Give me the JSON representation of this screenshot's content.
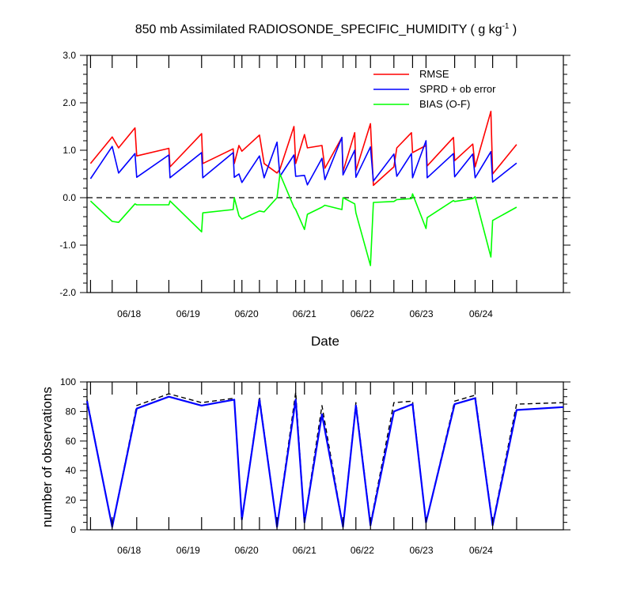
{
  "colors": {
    "rmse": "#ff0000",
    "sprd": "#0000ff",
    "bias": "#00ff00",
    "nobs_total": "#000000",
    "nobs_used": "#0000ff",
    "zero_line": "#000000"
  },
  "chart_data": [
    {
      "type": "line",
      "title": "850 mb Assimilated RADIOSONDE_SPECIFIC_HUMIDITY ( g kg",
      "title_sup": "-1",
      "title_end": " )",
      "xlabel": "Date",
      "ylabel": "",
      "xlim": [
        0,
        8.15
      ],
      "ylim": [
        -2.0,
        3.0
      ],
      "yticks": [
        "3.0",
        "2.0",
        "1.0",
        "0.0",
        "-1.0",
        "-2.0"
      ],
      "ytick_values": [
        3.0,
        2.0,
        1.0,
        0.0,
        -1.0,
        -2.0
      ],
      "xticks": [
        "06/18",
        "06/19",
        "06/20",
        "06/21",
        "06/22",
        "06/23",
        "06/24"
      ],
      "xtick_values": [
        0.72,
        1.73,
        2.73,
        3.72,
        4.71,
        5.72,
        6.74
      ],
      "zero_line": true,
      "legend_position": "top-right",
      "series": [
        {
          "name": "RMSE",
          "x": [
            0.06,
            0.43,
            0.54,
            0.82,
            0.85,
            1.4,
            1.42,
            1.96,
            1.98,
            2.5,
            2.52,
            2.6,
            2.65,
            2.95,
            3.03,
            3.25,
            3.3,
            3.54,
            3.57,
            3.72,
            3.77,
            4.02,
            4.07,
            4.36,
            4.38,
            4.58,
            4.6,
            4.85,
            4.9,
            5.25,
            5.3,
            5.55,
            5.57,
            5.8,
            5.82,
            6.27,
            6.29,
            6.6,
            6.64,
            6.91,
            6.94,
            7.35
          ],
          "y": [
            0.72,
            1.28,
            1.05,
            1.47,
            0.88,
            1.04,
            0.65,
            1.35,
            0.72,
            1.03,
            0.72,
            1.1,
            0.98,
            1.32,
            0.72,
            0.52,
            0.6,
            1.5,
            0.72,
            1.33,
            1.05,
            1.1,
            0.62,
            1.27,
            0.55,
            1.37,
            0.57,
            1.56,
            0.26,
            0.65,
            1.05,
            1.37,
            0.95,
            1.1,
            0.67,
            1.27,
            0.78,
            1.13,
            0.65,
            1.82,
            0.5,
            1.12
          ]
        },
        {
          "name": "SPRD + ob error",
          "x": [
            0.06,
            0.43,
            0.54,
            0.82,
            0.85,
            1.4,
            1.42,
            1.96,
            1.98,
            2.5,
            2.52,
            2.6,
            2.65,
            2.95,
            3.03,
            3.25,
            3.3,
            3.54,
            3.57,
            3.72,
            3.77,
            4.02,
            4.07,
            4.36,
            4.38,
            4.58,
            4.6,
            4.85,
            4.9,
            5.25,
            5.3,
            5.55,
            5.57,
            5.8,
            5.82,
            6.27,
            6.29,
            6.6,
            6.64,
            6.91,
            6.94,
            7.35
          ],
          "y": [
            0.4,
            1.08,
            0.52,
            0.93,
            0.43,
            0.9,
            0.42,
            0.95,
            0.42,
            0.95,
            0.43,
            0.5,
            0.32,
            0.88,
            0.42,
            1.17,
            0.45,
            0.9,
            0.45,
            0.47,
            0.27,
            0.83,
            0.38,
            1.27,
            0.48,
            1.0,
            0.43,
            1.07,
            0.35,
            0.92,
            0.45,
            0.93,
            0.42,
            1.2,
            0.42,
            0.93,
            0.44,
            0.92,
            0.42,
            0.97,
            0.33,
            0.73
          ]
        },
        {
          "name": "BIAS (O-F)",
          "x": [
            0.06,
            0.43,
            0.54,
            0.82,
            0.85,
            1.4,
            1.42,
            1.96,
            1.98,
            2.5,
            2.52,
            2.6,
            2.65,
            2.95,
            3.03,
            3.25,
            3.3,
            3.54,
            3.57,
            3.72,
            3.77,
            4.02,
            4.07,
            4.36,
            4.38,
            4.58,
            4.6,
            4.85,
            4.9,
            5.25,
            5.3,
            5.55,
            5.57,
            5.8,
            5.82,
            6.27,
            6.29,
            6.6,
            6.64,
            6.91,
            6.94,
            7.35
          ],
          "y": [
            -0.07,
            -0.5,
            -0.52,
            -0.13,
            -0.15,
            -0.15,
            -0.07,
            -0.72,
            -0.32,
            -0.25,
            0.0,
            -0.38,
            -0.45,
            -0.28,
            -0.3,
            0.0,
            0.5,
            -0.2,
            -0.25,
            -0.67,
            -0.35,
            -0.2,
            -0.16,
            -0.25,
            0.0,
            -0.13,
            -0.32,
            -1.43,
            -0.1,
            -0.08,
            -0.04,
            -0.02,
            0.08,
            -0.65,
            -0.42,
            -0.06,
            -0.08,
            -0.02,
            0.02,
            -1.25,
            -0.48,
            -0.2
          ]
        }
      ]
    },
    {
      "type": "line",
      "title": "",
      "xlabel": "",
      "ylabel": "number of observations",
      "xlim": [
        0,
        8.15
      ],
      "ylim": [
        0,
        100
      ],
      "yticks": [
        "100",
        "80",
        "60",
        "40",
        "20",
        "0"
      ],
      "ytick_values": [
        100,
        80,
        60,
        40,
        20,
        0
      ],
      "xticks": [
        "06/18",
        "06/19",
        "06/20",
        "06/21",
        "06/22",
        "06/23",
        "06/24"
      ],
      "xtick_values": [
        0.72,
        1.73,
        2.73,
        3.72,
        4.71,
        5.72,
        6.74
      ],
      "series": [
        {
          "name": "",
          "style": "dashed",
          "x": [
            0.0,
            0.43,
            0.85,
            1.4,
            1.96,
            2.52,
            2.65,
            2.95,
            3.25,
            3.57,
            3.72,
            4.02,
            4.38,
            4.6,
            4.85,
            5.25,
            5.57,
            5.8,
            6.29,
            6.64,
            6.94,
            7.35,
            8.15
          ],
          "y": [
            88,
            2,
            84,
            92,
            86,
            89,
            7,
            90,
            2,
            93,
            5,
            84,
            2,
            86,
            4,
            86,
            87,
            5,
            87,
            91,
            4,
            85,
            86
          ]
        },
        {
          "name": "",
          "style": "solid",
          "x": [
            0.0,
            0.43,
            0.85,
            1.4,
            1.96,
            2.52,
            2.65,
            2.95,
            3.25,
            3.57,
            3.72,
            4.02,
            4.38,
            4.6,
            4.85,
            5.25,
            5.57,
            5.8,
            6.29,
            6.64,
            6.94,
            7.35,
            8.15
          ],
          "y": [
            87,
            2,
            82,
            90,
            84,
            88,
            7,
            88,
            2,
            88,
            5,
            78,
            2,
            84,
            3,
            80,
            85,
            5,
            85,
            89,
            3,
            81,
            83
          ]
        }
      ]
    }
  ]
}
